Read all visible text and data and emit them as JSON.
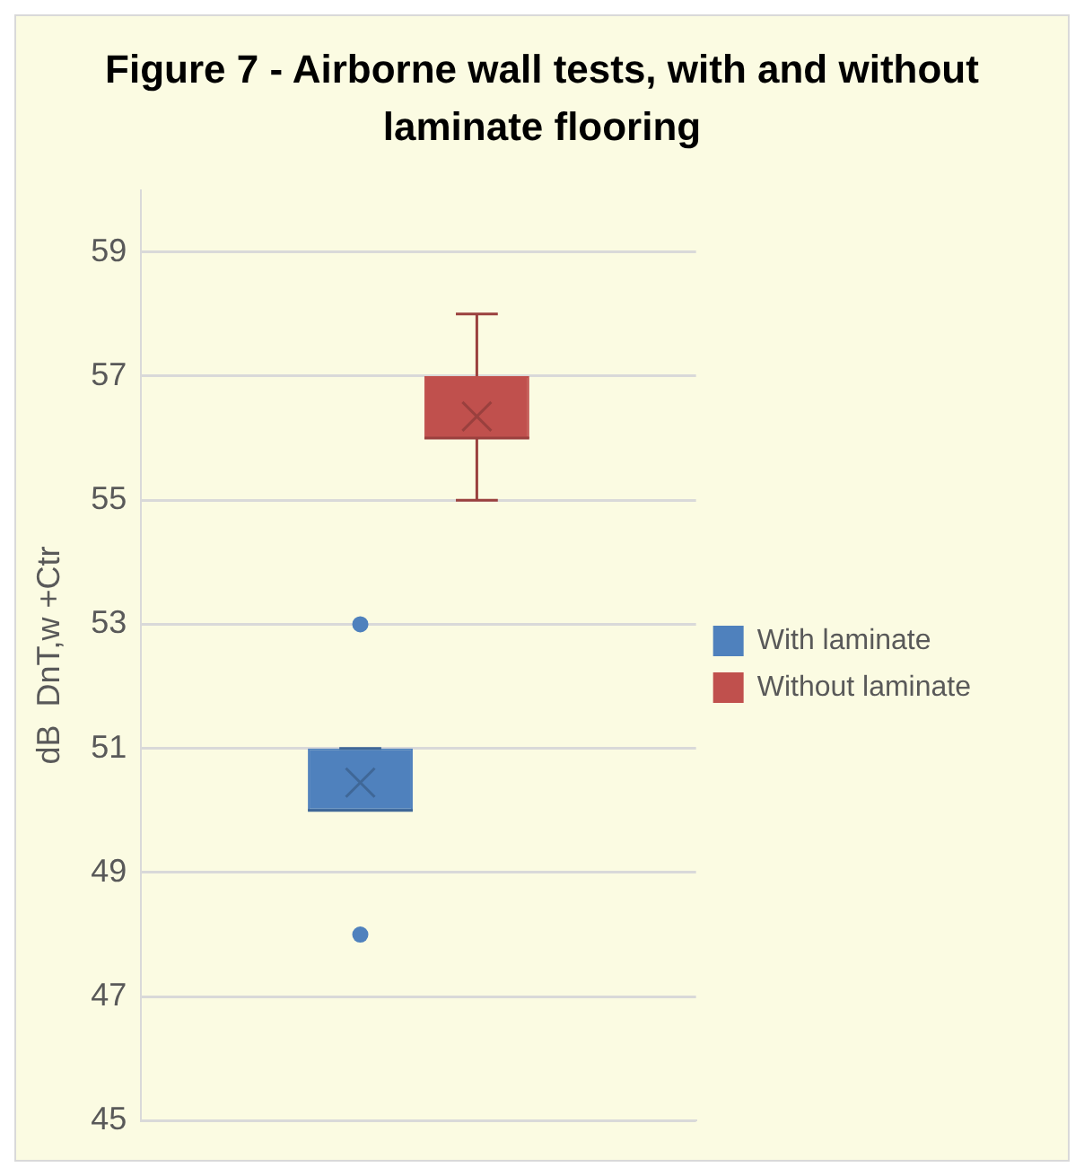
{
  "chart_data": {
    "type": "box",
    "title": "Figure 7 - Airborne wall tests, with and without laminate flooring",
    "ylabel": "dB  DnT,w +Ctr",
    "categories": [
      null
    ],
    "ylim": [
      45,
      60
    ],
    "yticks": [
      45,
      47,
      49,
      51,
      53,
      55,
      57,
      59
    ],
    "grid": "y",
    "legend": "right",
    "series": [
      {
        "name": "With laminate",
        "color": "#4f81bd",
        "boxes": [
          {
            "low": 50,
            "q1": 50,
            "median": 50,
            "q3": 51,
            "high": 51,
            "mean": 50.45,
            "outliers": [
              53,
              48
            ]
          }
        ]
      },
      {
        "name": "Without laminate",
        "color": "#c0504d",
        "boxes": [
          {
            "low": 55,
            "q1": 56,
            "median": 56,
            "q3": 57,
            "high": 58,
            "mean": 56.35
          }
        ]
      }
    ]
  }
}
